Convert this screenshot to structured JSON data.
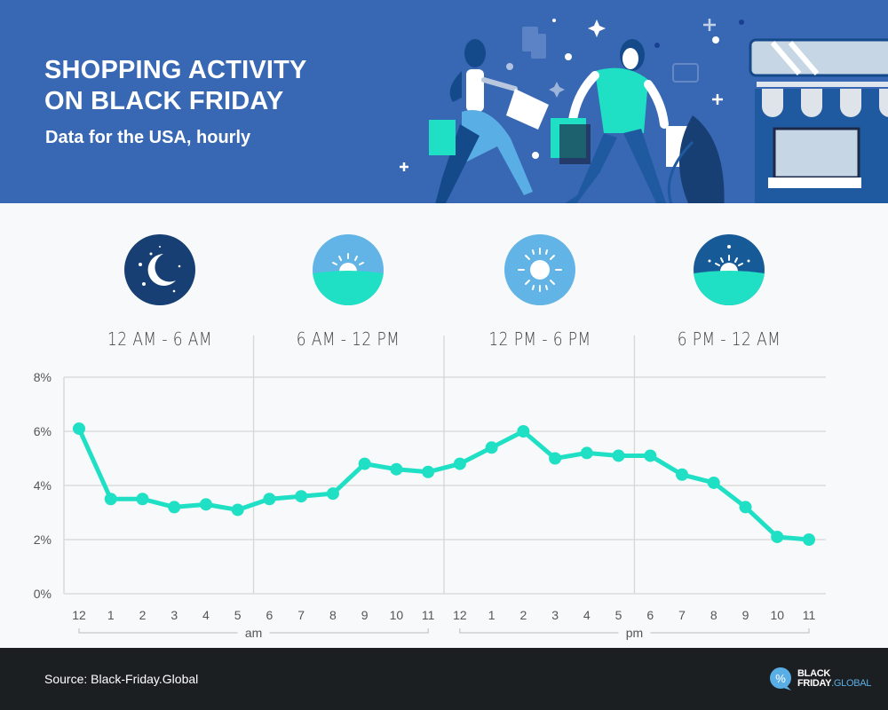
{
  "header": {
    "title_line1": "SHOPPING ACTIVITY",
    "title_line2": "ON BLACK FRIDAY",
    "subtitle": "Data for the USA, hourly"
  },
  "periods": [
    {
      "label": "12 AM - 6 AM",
      "icon": "moon-night-icon"
    },
    {
      "label": "6 AM - 12 PM",
      "icon": "sunrise-icon"
    },
    {
      "label": "12 PM - 6 PM",
      "icon": "sun-icon"
    },
    {
      "label": "6 PM - 12 AM",
      "icon": "sunset-icon"
    }
  ],
  "footer": {
    "source": "Source: Black-Friday.Global",
    "logo_line1": "BLACK",
    "logo_line2": "FRIDAY",
    "logo_line2_accent": ".GLOBAL",
    "logo_symbol": "%"
  },
  "colors": {
    "header_bg": "#3867b4",
    "line": "#1fe0c4",
    "footer_bg": "#1c1f22",
    "night": "#173f74",
    "sky": "#63b4e6",
    "dusk": "#165b97"
  },
  "chart_data": {
    "type": "line",
    "title": "SHOPPING ACTIVITY ON BLACK FRIDAY",
    "subtitle": "Data for the USA, hourly",
    "xlabel": "",
    "ylabel": "",
    "categories": [
      "12",
      "1",
      "2",
      "3",
      "4",
      "5",
      "6",
      "7",
      "8",
      "9",
      "10",
      "11",
      "12",
      "1",
      "2",
      "3",
      "4",
      "5",
      "6",
      "7",
      "8",
      "9",
      "10",
      "11"
    ],
    "x_groups": [
      {
        "label": "am",
        "from": 0,
        "to": 11
      },
      {
        "label": "pm",
        "from": 12,
        "to": 23
      }
    ],
    "series": [
      {
        "name": "Shopping activity (%)",
        "values": [
          6.1,
          3.5,
          3.5,
          3.2,
          3.3,
          3.1,
          3.5,
          3.6,
          3.7,
          4.8,
          4.6,
          4.5,
          4.8,
          5.4,
          6.0,
          5.0,
          5.2,
          5.1,
          5.1,
          4.4,
          4.1,
          3.2,
          2.1,
          2.0
        ]
      }
    ],
    "yticks": [
      "0%",
      "2%",
      "4%",
      "6%",
      "8%"
    ],
    "ylim": [
      0,
      8
    ],
    "grid": true,
    "period_dividers_after_index": [
      5,
      11,
      17
    ],
    "legend": "none"
  }
}
